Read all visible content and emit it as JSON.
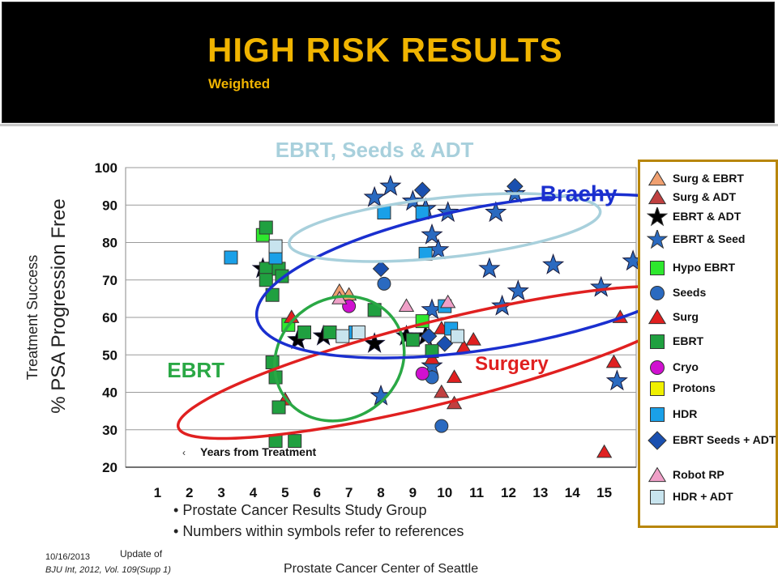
{
  "header": {
    "title": "HIGH RISK RESULTS",
    "subtitle": "Weighted"
  },
  "chart_data": {
    "type": "scatter",
    "xlabel": "Years from Treatment",
    "ylabel_line1": "Treatment Success",
    "ylabel_line2": "% PSA Progression Free",
    "xlim": [
      0,
      16
    ],
    "ylim": [
      20,
      100
    ],
    "x_ticks": [
      "1",
      "2",
      "3",
      "4",
      "5",
      "6",
      "7",
      "8",
      "9",
      "10",
      "11",
      "12",
      "13",
      "14",
      "15"
    ],
    "y_ticks": [
      "20",
      "30",
      "40",
      "50",
      "60",
      "70",
      "80",
      "90",
      "100"
    ],
    "grid": true,
    "regions": [
      {
        "label": "EBRT",
        "color": "#2aa845",
        "cx": 6.7,
        "cy": 49,
        "rx": 2.1,
        "ry": 16,
        "rot": 35
      },
      {
        "label": "Surgery",
        "color": "#e02020",
        "cx": 9.8,
        "cy": 48,
        "rx": 8.4,
        "ry": 11,
        "rot": 14
      },
      {
        "label": "Brachy",
        "color": "#1a2fcf",
        "cx": 11.6,
        "cy": 71,
        "rx": 7.6,
        "ry": 19,
        "rot": 10
      },
      {
        "label": "EBRT, Seeds & ADT",
        "color": "#a8d0dc",
        "cx": 10.0,
        "cy": 84,
        "rx": 4.9,
        "ry": 8,
        "rot": 6
      }
    ],
    "legend_position": "right",
    "series": [
      {
        "name": "Surg & EBRT",
        "shape": "triangle",
        "color": "#f0a070",
        "points": [
          [
            6.7,
            67
          ],
          [
            7.0,
            66
          ]
        ]
      },
      {
        "name": "Surg & ADT",
        "shape": "triangle",
        "color": "#c04040",
        "points": [
          [
            9.9,
            40
          ],
          [
            10.3,
            37
          ]
        ]
      },
      {
        "name": "EBRT & ADT",
        "shape": "star",
        "color": "#000000",
        "points": [
          [
            4.3,
            73
          ],
          [
            5.4,
            54
          ],
          [
            6.2,
            55
          ],
          [
            7.8,
            53
          ],
          [
            8.8,
            55
          ],
          [
            9.4,
            55
          ]
        ]
      },
      {
        "name": "EBRT & Seed",
        "shape": "star",
        "color": "#2a6ac0",
        "points": [
          [
            7.8,
            92
          ],
          [
            8.3,
            95
          ],
          [
            9.0,
            91
          ],
          [
            9.4,
            89
          ],
          [
            9.6,
            82
          ],
          [
            9.8,
            78
          ],
          [
            10.1,
            88
          ],
          [
            11.6,
            88
          ],
          [
            12.2,
            93
          ],
          [
            11.4,
            73
          ],
          [
            11.8,
            63
          ],
          [
            12.3,
            67
          ],
          [
            13.4,
            74
          ],
          [
            14.9,
            68
          ],
          [
            15.4,
            43
          ],
          [
            15.9,
            75
          ],
          [
            8.0,
            39
          ],
          [
            9.6,
            62
          ],
          [
            9.6,
            47
          ]
        ]
      },
      {
        "name": "Hypo EBRT",
        "shape": "square",
        "color": "#2ee82e",
        "points": [
          [
            4.3,
            82
          ],
          [
            5.1,
            58
          ],
          [
            9.3,
            59
          ]
        ]
      },
      {
        "name": "Seeds",
        "shape": "circle",
        "color": "#2a6ac0",
        "points": [
          [
            8.1,
            69
          ],
          [
            9.9,
            31
          ],
          [
            9.6,
            44
          ]
        ]
      },
      {
        "name": "Surg",
        "shape": "triangle",
        "color": "#e02020",
        "points": [
          [
            5.0,
            38
          ],
          [
            5.2,
            60
          ],
          [
            9.6,
            49
          ],
          [
            9.9,
            57
          ],
          [
            10.3,
            44
          ],
          [
            10.6,
            52
          ],
          [
            10.9,
            54
          ],
          [
            15.3,
            48
          ],
          [
            15.5,
            60
          ],
          [
            15.0,
            24
          ]
        ]
      },
      {
        "name": "EBRT",
        "shape": "square",
        "color": "#20a040",
        "points": [
          [
            4.4,
            84
          ],
          [
            4.4,
            73
          ],
          [
            4.4,
            70
          ],
          [
            4.6,
            66
          ],
          [
            4.8,
            73
          ],
          [
            4.9,
            71
          ],
          [
            4.6,
            48
          ],
          [
            4.7,
            44
          ],
          [
            4.8,
            36
          ],
          [
            4.7,
            27
          ],
          [
            5.3,
            27
          ],
          [
            5.6,
            56
          ],
          [
            6.4,
            56
          ],
          [
            7.8,
            62
          ],
          [
            9.0,
            54
          ],
          [
            9.6,
            51
          ]
        ]
      },
      {
        "name": "Cryo",
        "shape": "circle",
        "color": "#d010d0",
        "points": [
          [
            7.0,
            63
          ],
          [
            9.3,
            45
          ]
        ]
      },
      {
        "name": "Protons",
        "shape": "square",
        "color": "#f0f000",
        "points": []
      },
      {
        "name": "HDR",
        "shape": "square",
        "color": "#1aa0e8",
        "points": [
          [
            3.3,
            76
          ],
          [
            4.7,
            76
          ],
          [
            7.2,
            56
          ],
          [
            8.1,
            88
          ],
          [
            9.3,
            88
          ],
          [
            9.4,
            77
          ],
          [
            10.0,
            63
          ],
          [
            10.2,
            57
          ]
        ]
      },
      {
        "name": "EBRT Seeds + ADT",
        "shape": "diamond",
        "color": "#1a50b0",
        "points": [
          [
            8.0,
            73
          ],
          [
            9.3,
            94
          ],
          [
            9.5,
            55
          ],
          [
            10.0,
            53
          ],
          [
            12.2,
            95
          ]
        ]
      },
      {
        "name": "Robot RP",
        "shape": "triangle",
        "color": "#f0a0c8",
        "points": [
          [
            6.7,
            65
          ],
          [
            8.8,
            63
          ],
          [
            10.1,
            64
          ]
        ]
      },
      {
        "name": "HDR + ADT",
        "shape": "square",
        "color": "#c8e4ee",
        "points": [
          [
            4.7,
            79
          ],
          [
            6.8,
            55
          ],
          [
            7.3,
            56
          ],
          [
            10.4,
            55
          ]
        ]
      }
    ],
    "footer": {
      "bullets": [
        "Prostate Cancer Results Study Group",
        "Numbers within symbols refer to references"
      ],
      "date": "10/16/2013",
      "update": "Update of",
      "reference": "BJU Int, 2012, Vol. 109(Supp 1)",
      "center": "Prostate Cancer Center of Seattle"
    }
  }
}
